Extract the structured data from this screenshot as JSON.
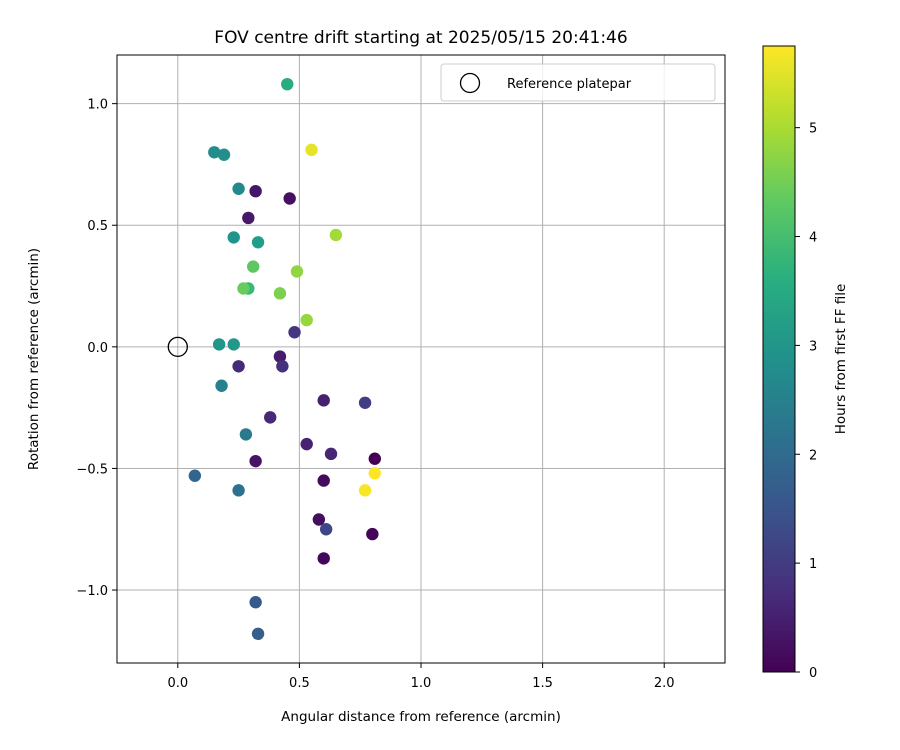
{
  "chart_data": {
    "type": "scatter",
    "title": "FOV centre drift starting at 2025/05/15 20:41:46",
    "xlabel": "Angular distance from reference (arcmin)",
    "ylabel": "Rotation from reference (arcmin)",
    "xlim": [
      -0.25,
      2.25
    ],
    "ylim": [
      -1.3,
      1.2
    ],
    "xticks": [
      0.0,
      0.5,
      1.0,
      1.5,
      2.0
    ],
    "yticks": [
      -1.0,
      -0.5,
      0.0,
      0.5,
      1.0
    ],
    "grid": true,
    "legend": {
      "position": "top-right",
      "entries": [
        "Reference platepar"
      ]
    },
    "reference_point": {
      "x": 0.0,
      "y": 0.0,
      "label": "Reference platepar"
    },
    "colorbar": {
      "label": "Hours from first FF file",
      "colormap": "viridis",
      "range": [
        0,
        5.75
      ],
      "ticks": [
        0,
        1,
        2,
        3,
        4,
        5
      ]
    },
    "points": [
      {
        "x": 0.81,
        "y": -0.46,
        "h": 0.0
      },
      {
        "x": 0.8,
        "y": -0.77,
        "h": 0.05
      },
      {
        "x": 0.6,
        "y": -0.87,
        "h": 0.1
      },
      {
        "x": 0.6,
        "y": -0.55,
        "h": 0.15
      },
      {
        "x": 0.58,
        "y": -0.71,
        "h": 0.2
      },
      {
        "x": 0.46,
        "y": 0.61,
        "h": 0.25
      },
      {
        "x": 0.32,
        "y": -0.47,
        "h": 0.3
      },
      {
        "x": 0.32,
        "y": 0.64,
        "h": 0.35
      },
      {
        "x": 0.29,
        "y": 0.53,
        "h": 0.4
      },
      {
        "x": 0.42,
        "y": -0.04,
        "h": 0.45
      },
      {
        "x": 0.6,
        "y": -0.22,
        "h": 0.5
      },
      {
        "x": 0.53,
        "y": -0.4,
        "h": 0.55
      },
      {
        "x": 0.63,
        "y": -0.44,
        "h": 0.6
      },
      {
        "x": 0.38,
        "y": -0.29,
        "h": 0.65
      },
      {
        "x": 0.25,
        "y": -0.08,
        "h": 0.7
      },
      {
        "x": 0.43,
        "y": -0.08,
        "h": 0.8
      },
      {
        "x": 0.48,
        "y": 0.06,
        "h": 0.9
      },
      {
        "x": 0.77,
        "y": -0.23,
        "h": 1.05
      },
      {
        "x": 0.61,
        "y": -0.75,
        "h": 1.2
      },
      {
        "x": 0.32,
        "y": -1.05,
        "h": 1.6
      },
      {
        "x": 0.33,
        "y": -1.18,
        "h": 1.7
      },
      {
        "x": 0.07,
        "y": -0.53,
        "h": 1.85
      },
      {
        "x": 0.25,
        "y": -0.59,
        "h": 2.15
      },
      {
        "x": 0.28,
        "y": -0.36,
        "h": 2.35
      },
      {
        "x": 0.18,
        "y": -0.16,
        "h": 2.5
      },
      {
        "x": 0.25,
        "y": 0.65,
        "h": 2.7
      },
      {
        "x": 0.15,
        "y": 0.8,
        "h": 2.8
      },
      {
        "x": 0.19,
        "y": 0.79,
        "h": 2.85
      },
      {
        "x": 0.23,
        "y": 0.45,
        "h": 3.0
      },
      {
        "x": 0.17,
        "y": 0.01,
        "h": 3.0
      },
      {
        "x": 0.23,
        "y": 0.01,
        "h": 3.05
      },
      {
        "x": 0.33,
        "y": 0.43,
        "h": 3.2
      },
      {
        "x": 0.45,
        "y": 1.08,
        "h": 3.55
      },
      {
        "x": 0.29,
        "y": 0.24,
        "h": 3.85
      },
      {
        "x": 0.31,
        "y": 0.33,
        "h": 4.3
      },
      {
        "x": 0.27,
        "y": 0.24,
        "h": 4.4
      },
      {
        "x": 0.42,
        "y": 0.22,
        "h": 4.6
      },
      {
        "x": 0.49,
        "y": 0.31,
        "h": 4.8
      },
      {
        "x": 0.53,
        "y": 0.11,
        "h": 4.85
      },
      {
        "x": 0.65,
        "y": 0.46,
        "h": 4.95
      },
      {
        "x": 0.55,
        "y": 0.81,
        "h": 5.55
      },
      {
        "x": 0.77,
        "y": -0.59,
        "h": 5.7
      },
      {
        "x": 0.81,
        "y": -0.52,
        "h": 5.75
      }
    ]
  }
}
